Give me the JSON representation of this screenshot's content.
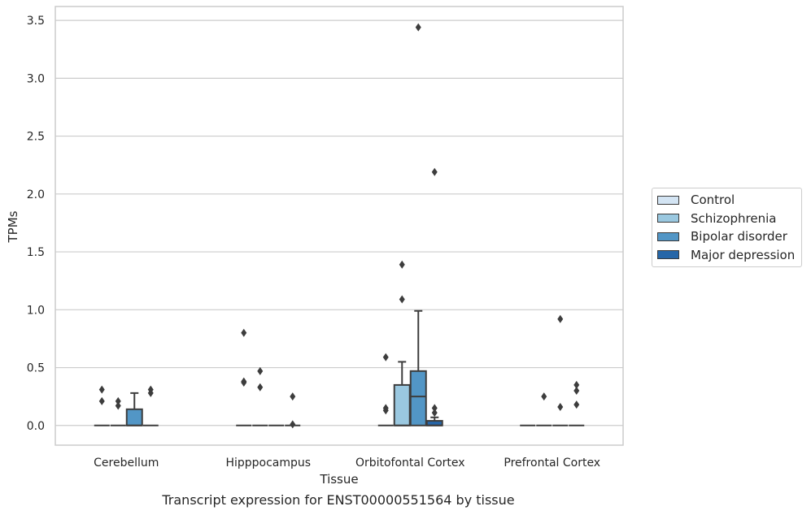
{
  "chart_data": {
    "type": "box",
    "title": "",
    "xlabel": "Tissue",
    "ylabel": "TPMs",
    "caption": "Transcript expression for ENST00000551564 by tissue",
    "categories": [
      "Cerebellum",
      "Hipppocampus",
      "Orbitofontal Cortex",
      "Prefrontal Cortex"
    ],
    "ylim": [
      -0.17,
      3.62
    ],
    "yticks": [
      "0.0",
      "0.5",
      "1.0",
      "1.5",
      "2.0",
      "2.5",
      "3.0",
      "3.5"
    ],
    "grid": true,
    "legend_position": "right",
    "series": [
      {
        "name": "Control",
        "color": "#d3e4f3",
        "boxes": [
          {
            "q1": 0,
            "median": 0,
            "q3": 0,
            "whisker_low": 0,
            "whisker_high": 0,
            "outliers": [
              0.31,
              0.21
            ]
          },
          {
            "q1": 0,
            "median": 0,
            "q3": 0,
            "whisker_low": 0,
            "whisker_high": 0,
            "outliers": [
              0.8,
              0.38,
              0.37
            ]
          },
          {
            "q1": 0,
            "median": 0,
            "q3": 0,
            "whisker_low": 0,
            "whisker_high": 0,
            "outliers": [
              0.59,
              0.15,
              0.13
            ]
          },
          {
            "q1": 0,
            "median": 0,
            "q3": 0,
            "whisker_low": 0,
            "whisker_high": 0,
            "outliers": []
          }
        ]
      },
      {
        "name": "Schizophrenia",
        "color": "#9ac8e0",
        "boxes": [
          {
            "q1": 0,
            "median": 0,
            "q3": 0,
            "whisker_low": 0,
            "whisker_high": 0,
            "outliers": [
              0.21,
              0.17
            ]
          },
          {
            "q1": 0,
            "median": 0,
            "q3": 0,
            "whisker_low": 0,
            "whisker_high": 0,
            "outliers": [
              0.47,
              0.33
            ]
          },
          {
            "q1": 0,
            "median": 0,
            "q3": 0.35,
            "whisker_low": 0,
            "whisker_high": 0.55,
            "outliers": [
              1.39,
              1.09
            ]
          },
          {
            "q1": 0,
            "median": 0,
            "q3": 0,
            "whisker_low": 0,
            "whisker_high": 0,
            "outliers": [
              0.25
            ]
          }
        ]
      },
      {
        "name": "Bipolar disorder",
        "color": "#5296c6",
        "boxes": [
          {
            "q1": 0,
            "median": 0,
            "q3": 0.14,
            "whisker_low": 0,
            "whisker_high": 0.28,
            "outliers": []
          },
          {
            "q1": 0,
            "median": 0,
            "q3": 0,
            "whisker_low": 0,
            "whisker_high": 0,
            "outliers": []
          },
          {
            "q1": 0,
            "median": 0.25,
            "q3": 0.47,
            "whisker_low": 0,
            "whisker_high": 0.99,
            "outliers": [
              3.44
            ]
          },
          {
            "q1": 0,
            "median": 0,
            "q3": 0,
            "whisker_low": 0,
            "whisker_high": 0,
            "outliers": [
              0.92,
              0.16
            ]
          }
        ]
      },
      {
        "name": "Major depression",
        "color": "#2666a8",
        "boxes": [
          {
            "q1": 0,
            "median": 0,
            "q3": 0,
            "whisker_low": 0,
            "whisker_high": 0,
            "outliers": [
              0.31,
              0.28
            ]
          },
          {
            "q1": 0,
            "median": 0,
            "q3": 0,
            "whisker_low": 0,
            "whisker_high": 0,
            "outliers": [
              0.25,
              0.01
            ]
          },
          {
            "q1": 0,
            "median": 0,
            "q3": 0.04,
            "whisker_low": 0,
            "whisker_high": 0.07,
            "outliers": [
              2.19,
              0.15,
              0.11
            ]
          },
          {
            "q1": 0,
            "median": 0,
            "q3": 0,
            "whisker_low": 0,
            "whisker_high": 0,
            "outliers": [
              0.35,
              0.3,
              0.18
            ]
          }
        ]
      }
    ]
  }
}
